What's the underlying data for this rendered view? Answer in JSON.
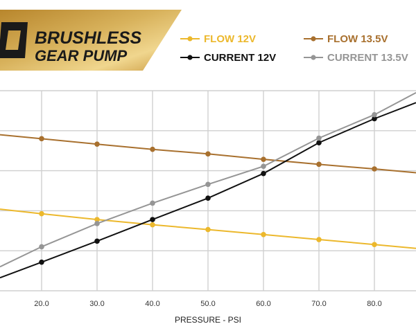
{
  "brand": {
    "line1": "BRUSHLESS",
    "line2": "GEAR PUMP",
    "colors": {
      "gold_dark": "#b88a2e",
      "gold_light": "#e8c877",
      "text": "#1a1a1a"
    }
  },
  "chart_data": {
    "type": "line",
    "xlabel": "PRESSURE - PSI",
    "ylabel": "",
    "x": [
      20,
      30,
      40,
      50,
      60,
      70,
      80
    ],
    "x_tick_labels": [
      "20.0",
      "30.0",
      "40.0",
      "50.0",
      "60.0",
      "70.0",
      "80.0"
    ],
    "xlim": [
      12.5,
      87.5
    ],
    "ylim": [
      0,
      1
    ],
    "grid": true,
    "legend_position": "top",
    "series": [
      {
        "name": "FLOW 12V",
        "color": "#ecb82c",
        "values": [
          0.385,
          0.356,
          0.33,
          0.306,
          0.281,
          0.256,
          0.231
        ],
        "x_start": 12.5,
        "y_start": 0.408,
        "x_end": 87.5,
        "y_end": 0.212
      },
      {
        "name": "FLOW 13.5V",
        "color": "#a8702e",
        "values": [
          0.76,
          0.733,
          0.707,
          0.684,
          0.657,
          0.632,
          0.609
        ],
        "x_start": 12.5,
        "y_start": 0.78,
        "x_end": 87.5,
        "y_end": 0.59
      },
      {
        "name": "CURRENT 12V",
        "color": "#111111",
        "values": [
          0.143,
          0.248,
          0.356,
          0.463,
          0.586,
          0.74,
          0.86
        ],
        "x_start": 12.5,
        "y_start": 0.065,
        "x_end": 87.5,
        "y_end": 0.94
      },
      {
        "name": "CURRENT 13.5V",
        "color": "#959595",
        "values": [
          0.22,
          0.336,
          0.438,
          0.532,
          0.622,
          0.763,
          0.88
        ],
        "x_start": 12.5,
        "y_start": 0.12,
        "x_end": 87.5,
        "y_end": 0.99
      }
    ]
  }
}
